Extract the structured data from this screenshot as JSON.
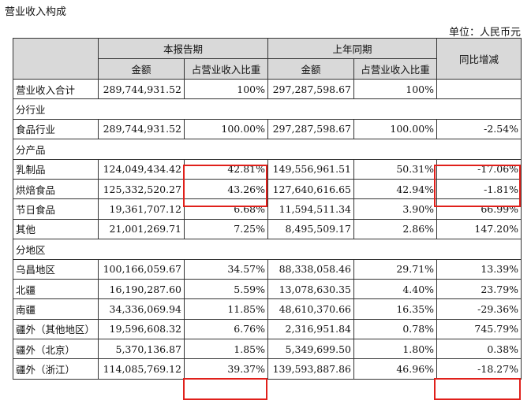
{
  "title": "营业收入构成",
  "unit": "单位：人民币元",
  "header": {
    "current_period": "本报告期",
    "prior_period": "上年同期",
    "yoy": "同比增减",
    "amount": "金额",
    "ratio": "占营业收入比重"
  },
  "total_row": {
    "label": "营业收入合计",
    "cur_amount": "289,744,931.52",
    "cur_ratio": "100%",
    "prev_amount": "297,287,598.67",
    "prev_ratio": "100%",
    "yoy": ""
  },
  "sections": [
    {
      "title": "分行业",
      "rows": [
        {
          "label": "食品行业",
          "cur_amount": "289,744,931.52",
          "cur_ratio": "100.00%",
          "prev_amount": "297,287,598.67",
          "prev_ratio": "100.00%",
          "yoy": "-2.54%"
        }
      ]
    },
    {
      "title": "分产品",
      "rows": [
        {
          "label": "乳制品",
          "cur_amount": "124,049,434.42",
          "cur_ratio": "42.81%",
          "prev_amount": "149,556,961.51",
          "prev_ratio": "50.31%",
          "yoy": "-17.06%"
        },
        {
          "label": "烘焙食品",
          "cur_amount": "125,332,520.27",
          "cur_ratio": "43.26%",
          "prev_amount": "127,640,616.65",
          "prev_ratio": "42.94%",
          "yoy": "-1.81%"
        },
        {
          "label": "节日食品",
          "cur_amount": "19,361,707.12",
          "cur_ratio": "6.68%",
          "prev_amount": "11,594,511.34",
          "prev_ratio": "3.90%",
          "yoy": "66.99%"
        },
        {
          "label": "其他",
          "cur_amount": "21,001,269.71",
          "cur_ratio": "7.25%",
          "prev_amount": "8,495,509.17",
          "prev_ratio": "2.86%",
          "yoy": "147.20%"
        }
      ]
    },
    {
      "title": "分地区",
      "rows": [
        {
          "label": "乌昌地区",
          "cur_amount": "100,166,059.67",
          "cur_ratio": "34.57%",
          "prev_amount": "88,338,058.46",
          "prev_ratio": "29.71%",
          "yoy": "13.39%"
        },
        {
          "label": "北疆",
          "cur_amount": "16,190,287.60",
          "cur_ratio": "5.59%",
          "prev_amount": "13,078,630.35",
          "prev_ratio": "4.40%",
          "yoy": "23.79%"
        },
        {
          "label": "南疆",
          "cur_amount": "34,336,069.94",
          "cur_ratio": "11.85%",
          "prev_amount": "48,610,370.66",
          "prev_ratio": "16.35%",
          "yoy": "-29.36%"
        },
        {
          "label": "疆外（其他地区）",
          "cur_amount": "19,596,608.32",
          "cur_ratio": "6.76%",
          "prev_amount": "2,316,951.84",
          "prev_ratio": "0.78%",
          "yoy": "745.79%"
        },
        {
          "label": "疆外（北京）",
          "cur_amount": "5,370,136.87",
          "cur_ratio": "1.85%",
          "prev_amount": "5,349,699.50",
          "prev_ratio": "1.80%",
          "yoy": "0.38%"
        },
        {
          "label": "疆外（浙江）",
          "cur_amount": "114,085,769.12",
          "cur_ratio": "39.37%",
          "prev_amount": "139,593,887.86",
          "prev_ratio": "46.96%",
          "yoy": "-18.27%"
        }
      ]
    }
  ]
}
